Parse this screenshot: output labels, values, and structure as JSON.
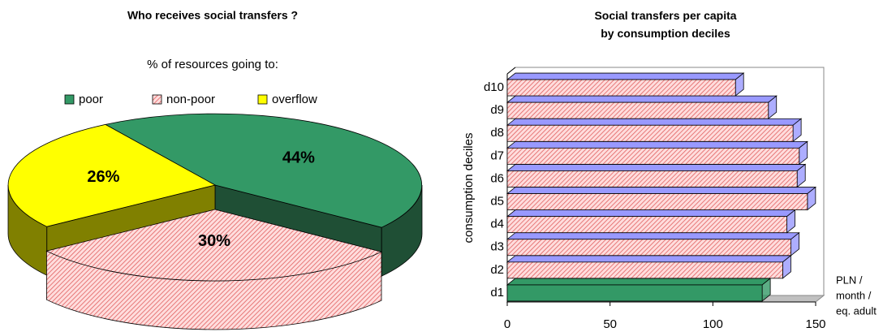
{
  "chart_data": [
    {
      "type": "pie3d",
      "title": "Who receives social transfers ?",
      "subtitle": "% of resources going to:",
      "categories": [
        "poor",
        "non-poor",
        "overflow"
      ],
      "values": [
        44,
        30,
        26
      ],
      "value_labels": [
        "44%",
        "30%",
        "26%"
      ],
      "colors": [
        "#339966",
        "#ff9999",
        "#ffff00"
      ],
      "side_colors": [
        "#1f4f35",
        "#ff9999",
        "#808000"
      ],
      "label_colors": [
        "#ffffff",
        "#000000",
        "#000000"
      ],
      "hatch": [
        false,
        true,
        false
      ],
      "exploded": [
        false,
        true,
        false
      ],
      "legend": "top"
    },
    {
      "type": "barh3d",
      "title": "Social transfers per capita by consumption deciles",
      "categories": [
        "d1",
        "d2",
        "d3",
        "d4",
        "d5",
        "d6",
        "d7",
        "d8",
        "d9",
        "d10"
      ],
      "values": [
        124,
        134,
        138,
        136,
        146,
        141,
        142,
        139,
        127,
        111
      ],
      "colors": [
        "#339966",
        "#ff9999",
        "#ff9999",
        "#ff9999",
        "#ff9999",
        "#ff9999",
        "#ff9999",
        "#ff9999",
        "#ff9999",
        "#ff9999"
      ],
      "top_colors": [
        "#339966",
        "#9999ff",
        "#9999ff",
        "#9999ff",
        "#9999ff",
        "#9999ff",
        "#9999ff",
        "#9999ff",
        "#9999ff",
        "#9999ff"
      ],
      "hatch": [
        false,
        true,
        true,
        true,
        true,
        true,
        true,
        true,
        true,
        true
      ],
      "xlim": [
        0,
        150
      ],
      "xticks": [
        0,
        50,
        100,
        150
      ],
      "ylabel": "consumption  deciles",
      "xlabel_lines": [
        "PLN /",
        "month /",
        "eq. adult"
      ]
    }
  ]
}
